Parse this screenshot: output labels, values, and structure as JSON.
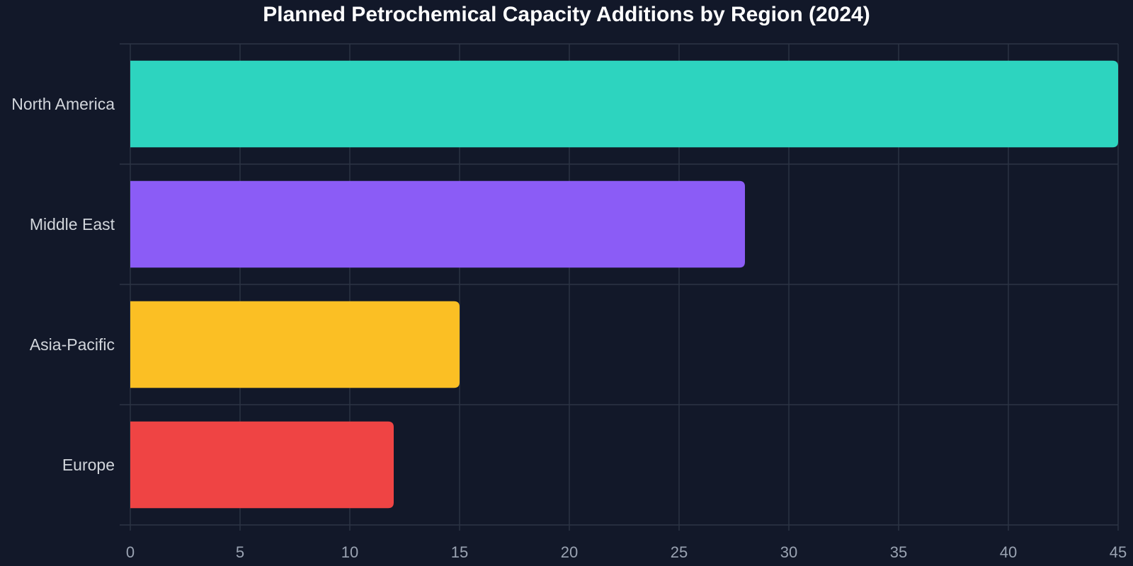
{
  "chart_data": {
    "type": "bar",
    "orientation": "horizontal",
    "title": "Planned Petrochemical Capacity Additions by Region (2024)",
    "xlabel": "",
    "ylabel": "",
    "categories": [
      "North America",
      "Middle East",
      "Asia-Pacific",
      "Europe"
    ],
    "values": [
      45,
      28,
      15,
      12
    ],
    "colors": [
      "#2dd4bf",
      "#8b5cf6",
      "#fbbf24",
      "#ef4444"
    ],
    "xlim": [
      0,
      45
    ],
    "xticks": [
      0,
      5,
      10,
      15,
      20,
      25,
      30,
      35,
      40,
      45
    ],
    "grid": true,
    "legend": "none",
    "background": "#121829"
  }
}
